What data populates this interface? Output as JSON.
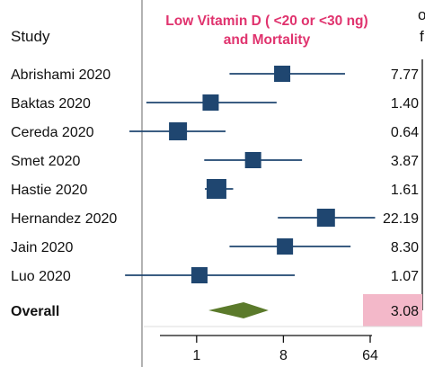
{
  "chart_data": {
    "type": "forest",
    "title_line1": "Low Vitamin D ( <20 or <30 ng)",
    "title_line2": "and Mortality",
    "title_color": "#e0336e",
    "study_header": "Study",
    "right_header_fragments": [
      "o",
      "f"
    ],
    "x_scale": "log2",
    "xlim": [
      0.27,
      64
    ],
    "x_ticks": [
      {
        "value": 1,
        "label": "1"
      },
      {
        "value": 8,
        "label": "8"
      },
      {
        "value": 64,
        "label": "64"
      }
    ],
    "studies": [
      {
        "name": "Abrishami 2020",
        "estimate": 7.77,
        "ci": [
          2.2,
          35
        ],
        "label": "7.77"
      },
      {
        "name": "Baktas 2020",
        "estimate": 1.4,
        "ci": [
          0.3,
          6.8
        ],
        "label": "1.40"
      },
      {
        "name": "Cereda 2020",
        "estimate": 0.64,
        "ci": [
          0.2,
          2.0
        ],
        "label": "0.64"
      },
      {
        "name": "Smet 2020",
        "estimate": 3.87,
        "ci": [
          1.2,
          12.5
        ],
        "label": "3.87"
      },
      {
        "name": "Hastie 2020",
        "estimate": 1.61,
        "ci": [
          1.22,
          2.4
        ],
        "label": "1.61"
      },
      {
        "name": "Hernandez 2020",
        "estimate": 22.19,
        "ci": [
          7.0,
          72
        ],
        "label": "22.19"
      },
      {
        "name": "Jain 2020",
        "estimate": 8.3,
        "ci": [
          2.2,
          40
        ],
        "label": "8.30"
      },
      {
        "name": "Luo 2020",
        "estimate": 1.07,
        "ci": [
          0.18,
          10.5
        ],
        "label": "1.07"
      }
    ],
    "overall": {
      "name": "Overall",
      "estimate": 3.08,
      "ci": [
        1.33,
        5.6
      ],
      "label": "3.08"
    },
    "colors": {
      "marker": "#1f4670",
      "ci_line": "#1f4670",
      "diamond": "#5b7a2b",
      "highlight": "#f3b8c9",
      "axis": "#999999",
      "text": "#111111"
    }
  }
}
